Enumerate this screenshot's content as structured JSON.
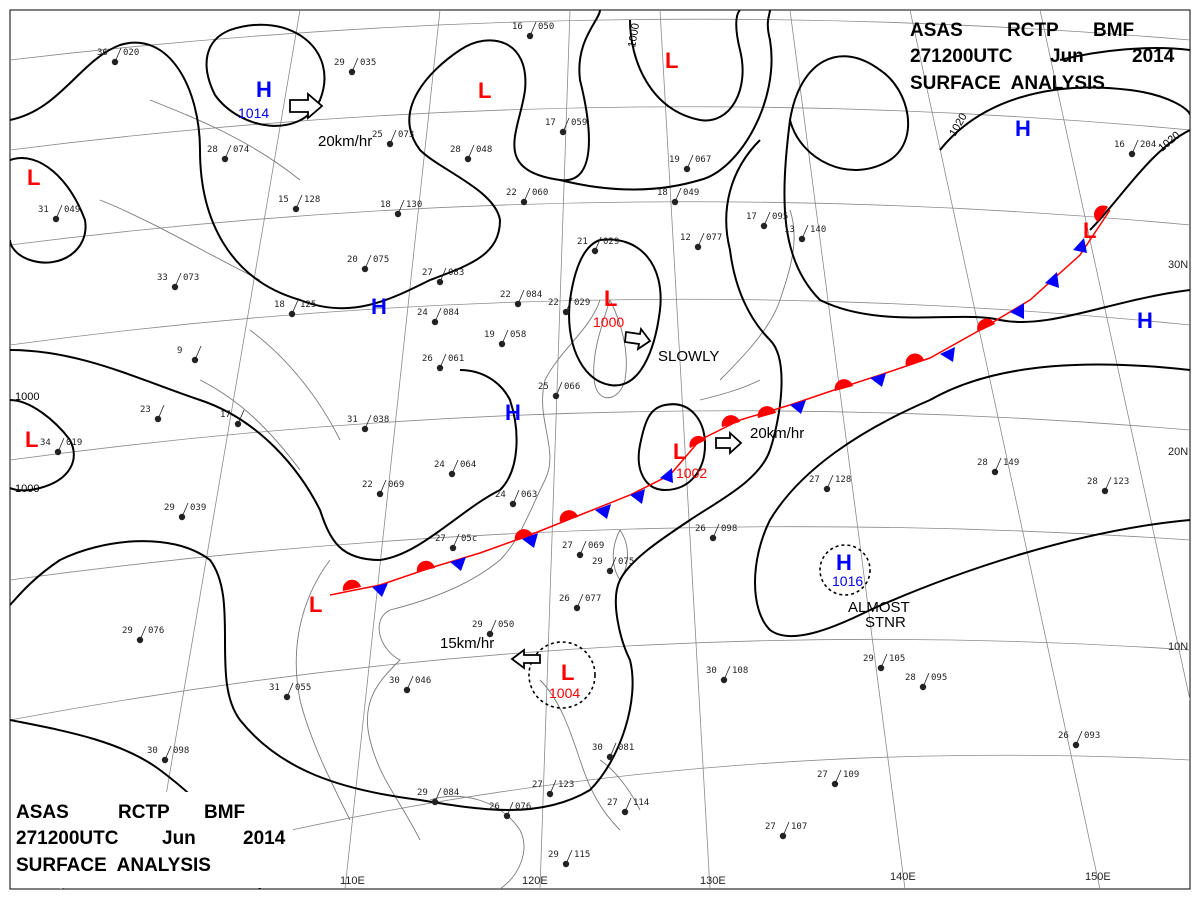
{
  "header": {
    "title_top_right": {
      "line1": [
        "ASAS",
        "RCTP",
        "BMF"
      ],
      "line2": [
        "271200UTC",
        "Jun",
        "2014"
      ],
      "line3": "SURFACE  ANALYSIS"
    },
    "title_bottom_left": {
      "line1": [
        "ASAS",
        "RCTP",
        "BMF"
      ],
      "line2": [
        "271200UTC",
        "Jun",
        "2014"
      ],
      "line3": "SURFACE  ANALYSIS"
    }
  },
  "grid": {
    "longitude_labels": [
      "110E",
      "120E",
      "130E",
      "140E",
      "150E"
    ],
    "latitude_labels": [
      "30N",
      "20N",
      "10N"
    ]
  },
  "colors": {
    "high": "#0000ff",
    "low": "#ff0000",
    "front_warm": "#ff0000",
    "front_cold": "#0000ff",
    "isobar": "#000000",
    "grid": "#888888",
    "coast": "#7a7a7a"
  },
  "pressure_systems": [
    {
      "type": "H",
      "pressure": "1014"
    },
    {
      "type": "L",
      "pressure": ""
    },
    {
      "type": "L",
      "pressure": ""
    },
    {
      "type": "L",
      "pressure": ""
    },
    {
      "type": "H",
      "pressure": ""
    },
    {
      "type": "H",
      "pressure": ""
    },
    {
      "type": "H",
      "pressure": ""
    },
    {
      "type": "L",
      "pressure": "1000"
    },
    {
      "type": "L",
      "pressure": ""
    },
    {
      "type": "L",
      "pressure": "1002"
    },
    {
      "type": "H",
      "pressure": ""
    },
    {
      "type": "H",
      "pressure": "1016"
    },
    {
      "type": "L",
      "pressure": ""
    },
    {
      "type": "L",
      "pressure": "1004"
    },
    {
      "type": "L",
      "pressure": ""
    }
  ],
  "isobar_labels": [
    "1000",
    "1000",
    "1020",
    "1020",
    "1000"
  ],
  "annotations": {
    "motion_1": "20km/hr",
    "motion_2": "SLOWLY",
    "motion_3": "20km/hr",
    "motion_4": "15km/hr",
    "stationary_1": "ALMOST",
    "stationary_2": "STNR"
  },
  "station_plots": [
    {
      "t": "36",
      "p": "020"
    },
    {
      "t": "29",
      "p": "035"
    },
    {
      "t": "16",
      "p": "050"
    },
    {
      "t": "28",
      "p": "074"
    },
    {
      "t": "25",
      "p": "073"
    },
    {
      "t": "28",
      "p": "048"
    },
    {
      "t": "17",
      "p": "059"
    },
    {
      "t": "19",
      "p": "067"
    },
    {
      "t": "31",
      "p": "049"
    },
    {
      "t": "15",
      "p": "128"
    },
    {
      "t": "18",
      "p": "130"
    },
    {
      "t": "22",
      "p": "060"
    },
    {
      "t": "18",
      "p": "049"
    },
    {
      "t": "17",
      "p": "095"
    },
    {
      "t": "16",
      "p": "204"
    },
    {
      "t": "20",
      "p": "075"
    },
    {
      "t": "27",
      "p": "083"
    },
    {
      "t": "21",
      "p": "029"
    },
    {
      "t": "12",
      "p": "077"
    },
    {
      "t": "13",
      "p": "140"
    },
    {
      "t": "33",
      "p": "073"
    },
    {
      "t": "18",
      "p": "125"
    },
    {
      "t": "24",
      "p": "084"
    },
    {
      "t": "22",
      "p": "084"
    },
    {
      "t": "22",
      "p": "029"
    },
    {
      "t": "19",
      "p": "058"
    },
    {
      "t": "9",
      "p": ""
    },
    {
      "t": "26",
      "p": "061"
    },
    {
      "t": "25",
      "p": "066"
    },
    {
      "t": "23",
      "p": ""
    },
    {
      "t": "17",
      "p": ""
    },
    {
      "t": "31",
      "p": "038"
    },
    {
      "t": "34",
      "p": "019"
    },
    {
      "t": "24",
      "p": "064"
    },
    {
      "t": "22",
      "p": "069"
    },
    {
      "t": "24",
      "p": "063"
    },
    {
      "t": "29",
      "p": "039"
    },
    {
      "t": "27",
      "p": "05c"
    },
    {
      "t": "27",
      "p": "069"
    },
    {
      "t": "28",
      "p": "149"
    },
    {
      "t": "27",
      "p": "128"
    },
    {
      "t": "28",
      "p": "123"
    },
    {
      "t": "26",
      "p": "098"
    },
    {
      "t": "26",
      "p": "077"
    },
    {
      "t": "29",
      "p": "075"
    },
    {
      "t": "29",
      "p": "050"
    },
    {
      "t": "29",
      "p": "076"
    },
    {
      "t": "30",
      "p": "046"
    },
    {
      "t": "31",
      "p": "055"
    },
    {
      "t": "30",
      "p": "108"
    },
    {
      "t": "29",
      "p": "105"
    },
    {
      "t": "28",
      "p": "095"
    },
    {
      "t": "30",
      "p": "098"
    },
    {
      "t": "26",
      "p": "093"
    },
    {
      "t": "29",
      "p": "084"
    },
    {
      "t": "26",
      "p": "076"
    },
    {
      "t": "27",
      "p": "123"
    },
    {
      "t": "27",
      "p": "114"
    },
    {
      "t": "29",
      "p": "115"
    },
    {
      "t": "27",
      "p": "107"
    },
    {
      "t": "27",
      "p": "109"
    },
    {
      "t": "30",
      "p": "081"
    }
  ]
}
